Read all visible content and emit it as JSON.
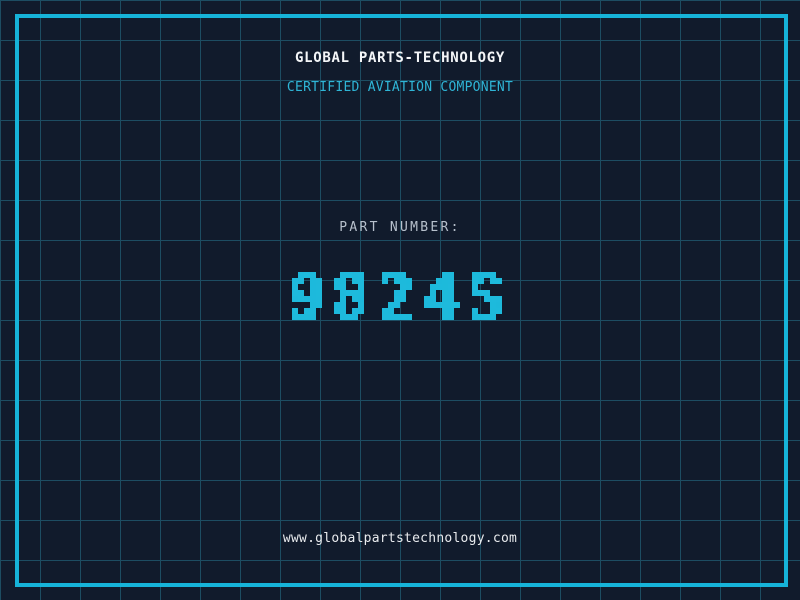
{
  "header": {
    "title": "GLOBAL PARTS-TECHNOLOGY",
    "subtitle": "CERTIFIED AVIATION COMPONENT"
  },
  "part": {
    "label": "PART NUMBER:",
    "number": "9824S"
  },
  "footer": {
    "website": "www.globalpartstechnology.com"
  },
  "colors": {
    "background": "#111b2c",
    "grid_line": "#1d4d62",
    "frame": "#16b3d9",
    "title": "#f4f6f8",
    "subtitle": "#2fb5d6",
    "part_label": "#b7c0cc",
    "part_number": "#1ebadc",
    "website": "#e9ebee"
  }
}
